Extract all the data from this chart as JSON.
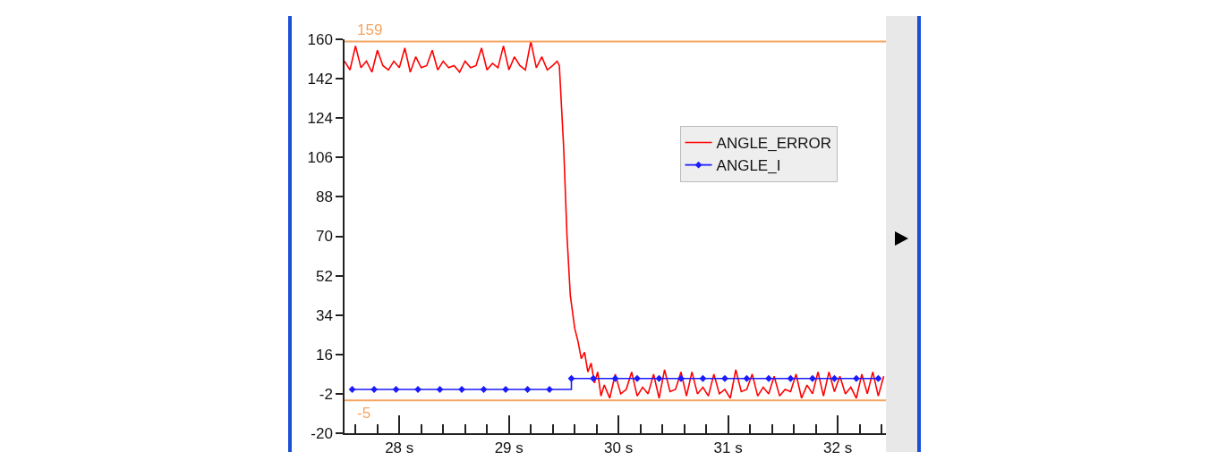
{
  "chart_data": {
    "type": "line",
    "x": [
      27.5,
      27.55,
      27.6,
      27.65,
      27.7,
      27.75,
      27.8,
      27.85,
      27.9,
      27.95,
      28.0,
      28.05,
      28.1,
      28.15,
      28.2,
      28.25,
      28.3,
      28.35,
      28.4,
      28.45,
      28.5,
      28.55,
      28.6,
      28.65,
      28.7,
      28.75,
      28.8,
      28.85,
      28.9,
      28.95,
      29.0,
      29.05,
      29.1,
      29.15,
      29.2,
      29.25,
      29.3,
      29.35,
      29.4,
      29.44,
      29.46,
      29.5,
      29.53,
      29.56,
      29.6,
      29.63,
      29.66,
      29.69,
      29.72,
      29.75,
      29.78,
      29.81,
      29.84,
      29.87,
      29.92,
      29.97,
      30.02,
      30.07,
      30.12,
      30.17,
      30.22,
      30.27,
      30.32,
      30.37,
      30.42,
      30.47,
      30.52,
      30.57,
      30.62,
      30.67,
      30.72,
      30.77,
      30.82,
      30.87,
      30.92,
      30.97,
      31.02,
      31.07,
      31.12,
      31.17,
      31.22,
      31.27,
      31.32,
      31.37,
      31.42,
      31.47,
      31.52,
      31.57,
      31.62,
      31.67,
      31.72,
      31.77,
      31.82,
      31.87,
      31.92,
      31.97,
      32.02,
      32.07,
      32.12,
      32.17,
      32.22,
      32.27,
      32.32,
      32.37,
      32.42
    ],
    "series": [
      {
        "name": "ANGLE_ERROR",
        "color": "#ff0000",
        "marker": "none",
        "values": [
          150,
          146,
          157,
          147,
          150,
          145,
          155,
          148,
          146,
          150,
          147,
          156,
          145,
          152,
          147,
          148,
          155,
          146,
          150,
          147,
          148,
          145,
          150,
          147,
          148,
          156,
          146,
          149,
          147,
          157,
          146,
          152,
          148,
          146,
          159,
          147,
          152,
          146,
          148,
          150,
          148,
          110,
          70,
          43,
          28,
          22,
          14,
          17,
          8,
          12,
          3,
          8,
          -3,
          2,
          -4,
          7,
          -2,
          0,
          8,
          -3,
          1,
          -2,
          7,
          -4,
          9,
          -1,
          0,
          8,
          -3,
          8,
          -2,
          1,
          -3,
          7,
          -2,
          0,
          -4,
          9,
          -1,
          0,
          7,
          -3,
          1,
          -2,
          6,
          -3,
          0,
          -1,
          7,
          -4,
          2,
          -2,
          8,
          -3,
          8,
          -1,
          6,
          -2,
          1,
          -4,
          7,
          -2,
          8,
          -3,
          6
        ]
      },
      {
        "name": "ANGLE_I",
        "color": "#1a1aff",
        "type": "step",
        "marker": "diamond",
        "x": [
          27.57,
          27.77,
          27.97,
          28.17,
          28.37,
          28.57,
          28.77,
          28.97,
          29.17,
          29.37,
          29.57,
          29.77,
          29.97,
          30.17,
          30.37,
          30.57,
          30.77,
          30.97,
          31.17,
          31.37,
          31.57,
          31.77,
          31.97,
          32.17,
          32.37
        ],
        "values": [
          0,
          0,
          0,
          0,
          0,
          0,
          0,
          0,
          0,
          0,
          5,
          5,
          5,
          5,
          5,
          5,
          5,
          5,
          5,
          5,
          5,
          5,
          5,
          5,
          5
        ]
      }
    ],
    "xlim": [
      27.5,
      32.44
    ],
    "xticks": [
      {
        "value": 27.6,
        "label": null
      },
      {
        "value": 27.8,
        "label": null
      },
      {
        "value": 28,
        "label": "28 s"
      },
      {
        "value": 28.2,
        "label": null
      },
      {
        "value": 28.4,
        "label": null
      },
      {
        "value": 28.6,
        "label": null
      },
      {
        "value": 28.8,
        "label": null
      },
      {
        "value": 29,
        "label": "29 s"
      },
      {
        "value": 29.2,
        "label": null
      },
      {
        "value": 29.4,
        "label": null
      },
      {
        "value": 29.6,
        "label": null
      },
      {
        "value": 29.8,
        "label": null
      },
      {
        "value": 30,
        "label": "30 s"
      },
      {
        "value": 30.2,
        "label": null
      },
      {
        "value": 30.4,
        "label": null
      },
      {
        "value": 30.6,
        "label": null
      },
      {
        "value": 30.8,
        "label": null
      },
      {
        "value": 31,
        "label": "31 s"
      },
      {
        "value": 31.2,
        "label": null
      },
      {
        "value": 31.4,
        "label": null
      },
      {
        "value": 31.6,
        "label": null
      },
      {
        "value": 31.8,
        "label": null
      },
      {
        "value": 32,
        "label": "32 s"
      },
      {
        "value": 32.2,
        "label": null
      },
      {
        "value": 32.4,
        "label": null
      }
    ],
    "ylim": [
      -20,
      160
    ],
    "yticks": [
      -20,
      -2,
      16,
      34,
      52,
      70,
      88,
      106,
      124,
      142,
      160
    ],
    "ref_lines": [
      {
        "axis": "y",
        "value": 159,
        "label": "159",
        "color": "#f5a460"
      },
      {
        "axis": "y",
        "value": -5,
        "label": "-5",
        "color": "#f5a460"
      }
    ],
    "legend": "top right",
    "grid": false
  }
}
